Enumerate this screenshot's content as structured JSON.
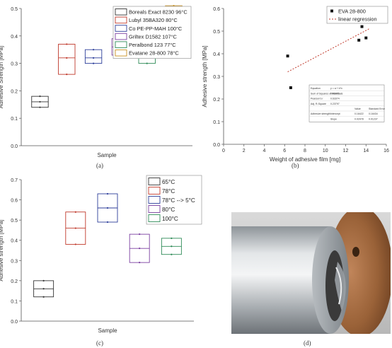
{
  "panels": {
    "a": {
      "caption": "(a)"
    },
    "b": {
      "caption": "(b)"
    },
    "c": {
      "caption": "(c)"
    },
    "d": {
      "caption": "(d)"
    }
  },
  "chart_data": [
    {
      "id": "a",
      "type": "box",
      "xlabel": "Sample",
      "ylabel": "Adhesive Strength [MPa]",
      "ylim": [
        0,
        0.5
      ],
      "yticks": [
        "0.0",
        "0.1",
        "0.2",
        "0.3",
        "0.4",
        "0.5"
      ],
      "grid": false,
      "legend_position": "top-right",
      "series": [
        {
          "name": "Boreals Exact 8230 96°C",
          "color": "#333333",
          "q1": 0.14,
          "median": 0.16,
          "q3": 0.18,
          "points": [
            0.14,
            0.16,
            0.18
          ]
        },
        {
          "name": "Lubyl 35BA320 80°C",
          "color": "#c0392b",
          "q1": 0.26,
          "median": 0.32,
          "q3": 0.37,
          "points": [
            0.26,
            0.32,
            0.37
          ]
        },
        {
          "name": "Co PE-PP-MAH 100°C",
          "color": "#2c3e9a",
          "q1": 0.3,
          "median": 0.32,
          "q3": 0.35,
          "points": [
            0.3,
            0.32,
            0.35
          ]
        },
        {
          "name": "Griltex D1582 107°C",
          "color": "#7b3fa0",
          "q1": 0.33,
          "median": 0.36,
          "q3": 0.39,
          "points": [
            0.33,
            0.36,
            0.39
          ]
        },
        {
          "name": "Peralbond 123 77°C",
          "color": "#2e8b57",
          "q1": 0.3,
          "median": 0.38,
          "q3": 0.46,
          "points": [
            0.3,
            0.38,
            0.46
          ]
        },
        {
          "name": "Evatane 28-800 78°C",
          "color": "#c89020",
          "q1": 0.44,
          "median": 0.47,
          "q3": 0.51,
          "points": [
            0.44,
            0.47,
            0.51
          ]
        }
      ]
    },
    {
      "id": "b",
      "type": "scatter",
      "xlabel": "Weight of adhesive film [mg]",
      "ylabel": "Adhesive strength [MPa]",
      "xlim": [
        0,
        16
      ],
      "ylim": [
        0,
        0.6
      ],
      "xticks": [
        "0",
        "2",
        "4",
        "6",
        "8",
        "10",
        "12",
        "14",
        "16"
      ],
      "yticks": [
        "0.0",
        "0.1",
        "0.2",
        "0.3",
        "0.4",
        "0.5",
        "0.6"
      ],
      "grid": false,
      "legend_position": "top-right",
      "series": [
        {
          "name": "EVA 28-800",
          "marker": "square",
          "color": "#111111",
          "x": [
            6.3,
            6.6,
            13.3,
            13.6,
            14.0,
            14.3
          ],
          "y": [
            0.39,
            0.25,
            0.46,
            0.52,
            0.47,
            0.56
          ]
        },
        {
          "name": "linear regression",
          "style": "dotted",
          "color": "#c0392b",
          "x": [
            6.3,
            14.3
          ],
          "y": [
            0.32,
            0.51
          ]
        }
      ],
      "regression_table": {
        "rows": [
          [
            "Equation",
            "y = a + b*x",
            "",
            ""
          ],
          [
            "Sum of Squares of Residuals",
            "0.00476",
            "",
            ""
          ],
          [
            "Pearson's r",
            "0.63374",
            "",
            ""
          ],
          [
            "Adj. R-Square",
            "0.23797",
            "",
            ""
          ],
          [
            "",
            "",
            "Value",
            "Standard Error"
          ],
          [
            "Adhesive strength",
            "Intercept",
            "0.16422",
            "0.16434"
          ],
          [
            "",
            "Slope",
            "0.02478",
            "0.01237"
          ]
        ]
      }
    },
    {
      "id": "c",
      "type": "box",
      "xlabel": "Sample",
      "ylabel": "Adhesive strength [MPa]",
      "ylim": [
        0,
        0.7
      ],
      "yticks": [
        "0.0",
        "0.1",
        "0.2",
        "0.3",
        "0.4",
        "0.5",
        "0.6",
        "0.7"
      ],
      "grid": false,
      "legend_position": "top-right",
      "series": [
        {
          "name": "65°C",
          "color": "#333333",
          "q1": 0.12,
          "median": 0.16,
          "q3": 0.2,
          "points": [
            0.12,
            0.16,
            0.2
          ]
        },
        {
          "name": "78°C",
          "color": "#c0392b",
          "q1": 0.38,
          "median": 0.46,
          "q3": 0.54,
          "points": [
            0.38,
            0.46,
            0.54
          ]
        },
        {
          "name": "78°C --> 5°C",
          "color": "#2c3e9a",
          "q1": 0.49,
          "median": 0.56,
          "q3": 0.63,
          "points": [
            0.49,
            0.56,
            0.63
          ]
        },
        {
          "name": "80°C",
          "color": "#7b3fa0",
          "q1": 0.29,
          "median": 0.36,
          "q3": 0.43,
          "points": [
            0.29,
            0.36,
            0.43
          ]
        },
        {
          "name": "100°C",
          "color": "#2e8b57",
          "q1": 0.33,
          "median": 0.37,
          "q3": 0.41,
          "points": [
            0.33,
            0.37,
            0.41
          ]
        }
      ]
    }
  ]
}
